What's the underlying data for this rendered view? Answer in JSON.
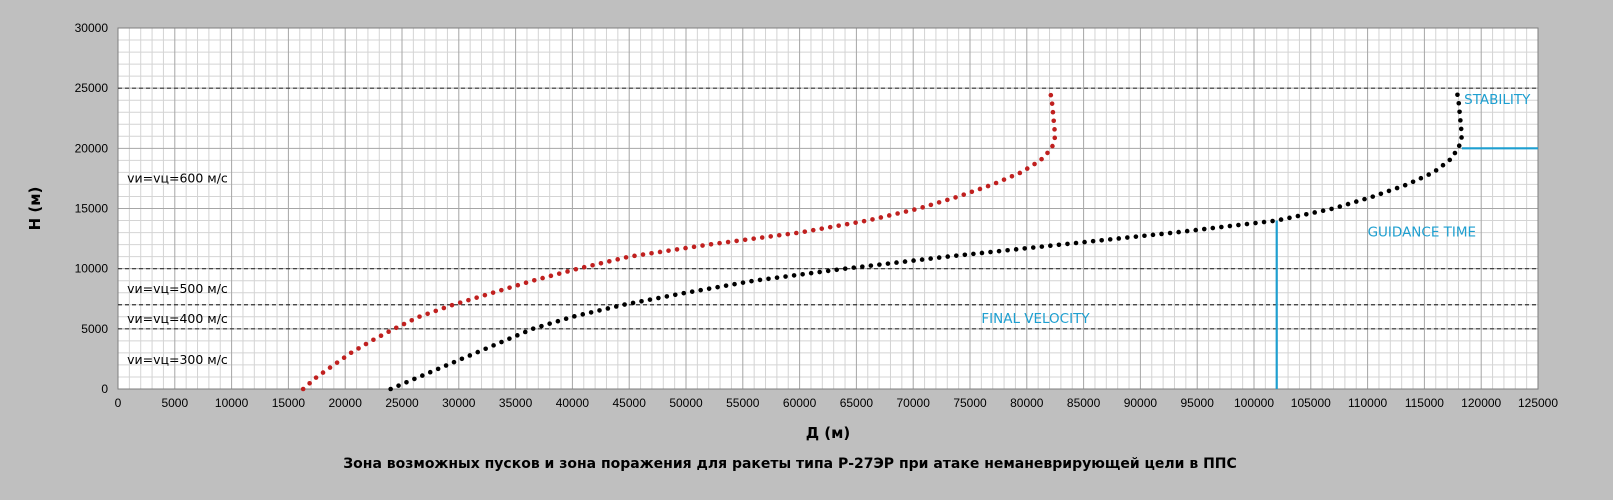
{
  "chart_data": {
    "type": "scatter",
    "title": "Зона возможных пусков и зона поражения для ракеты типа Р-27ЭР при атаке неманеврирующей цели в ППС",
    "xlabel": "Д (м)",
    "ylabel": "H (м)",
    "xlim": [
      0,
      125000
    ],
    "ylim": [
      0,
      30000
    ],
    "x_ticks": [
      0,
      5000,
      10000,
      15000,
      20000,
      25000,
      30000,
      35000,
      40000,
      45000,
      50000,
      55000,
      60000,
      65000,
      70000,
      75000,
      80000,
      85000,
      90000,
      95000,
      100000,
      105000,
      110000,
      115000,
      120000,
      125000
    ],
    "y_ticks": [
      0,
      5000,
      10000,
      15000,
      20000,
      25000,
      30000
    ],
    "minor_grid": {
      "x_step": 1000,
      "y_step": 1000
    },
    "major_grid_x_step": 5000,
    "grid": true,
    "legend": "none",
    "series": [
      {
        "color": "#c0201f",
        "points": [
          [
            16300,
            0
          ],
          [
            17500,
            1000
          ],
          [
            19000,
            2000
          ],
          [
            20500,
            3000
          ],
          [
            22300,
            4000
          ],
          [
            24300,
            5000
          ],
          [
            26500,
            6000
          ],
          [
            29500,
            7000
          ],
          [
            33000,
            8000
          ],
          [
            36500,
            9000
          ],
          [
            40500,
            10000
          ],
          [
            45000,
            11000
          ],
          [
            52000,
            12000
          ],
          [
            60000,
            13000
          ],
          [
            66000,
            14000
          ],
          [
            70500,
            15000
          ],
          [
            74000,
            16000
          ],
          [
            77000,
            17000
          ],
          [
            79500,
            18000
          ],
          [
            81200,
            19000
          ],
          [
            82200,
            20000
          ],
          [
            82500,
            21000
          ],
          [
            82400,
            22000
          ],
          [
            82300,
            23000
          ],
          [
            82200,
            24000
          ],
          [
            82000,
            25000
          ]
        ]
      },
      {
        "color": "#000000",
        "points": [
          [
            24000,
            0
          ],
          [
            26500,
            1000
          ],
          [
            29000,
            2000
          ],
          [
            31500,
            3000
          ],
          [
            34000,
            4000
          ],
          [
            36500,
            5000
          ],
          [
            40000,
            6000
          ],
          [
            44500,
            7000
          ],
          [
            50000,
            8000
          ],
          [
            56000,
            9000
          ],
          [
            64000,
            10000
          ],
          [
            73000,
            11000
          ],
          [
            83000,
            12000
          ],
          [
            93000,
            13000
          ],
          [
            102000,
            14000
          ],
          [
            107000,
            15000
          ],
          [
            110500,
            16000
          ],
          [
            113500,
            17000
          ],
          [
            115800,
            18000
          ],
          [
            117200,
            19000
          ],
          [
            118000,
            20000
          ],
          [
            118300,
            21000
          ],
          [
            118200,
            22000
          ],
          [
            118100,
            23000
          ],
          [
            118000,
            24000
          ],
          [
            117800,
            25000
          ]
        ]
      }
    ],
    "dashed_reference_lines_y": [
      25000,
      10000,
      7000,
      5000
    ],
    "zone_labels": [
      {
        "text": "vи=vц=600 м/с",
        "x": 800,
        "y": 17500
      },
      {
        "text": "vи=vц=500 м/с",
        "x": 800,
        "y": 8300
      },
      {
        "text": "vи=vц=400 м/с",
        "x": 800,
        "y": 5800
      },
      {
        "text": "vи=vц=300 м/с",
        "x": 800,
        "y": 2400
      }
    ],
    "annotations": [
      {
        "text": "STABILITY",
        "x": 118500,
        "y": 24000,
        "color": "#1e9fd0"
      },
      {
        "text": "GUIDANCE TIME",
        "x": 110000,
        "y": 13000,
        "color": "#1e9fd0"
      },
      {
        "text": "FINAL VELOCITY",
        "x": 76000,
        "y": 5800,
        "color": "#1e9fd0"
      }
    ],
    "annotation_lines": [
      {
        "x1": 102000,
        "y1": 0,
        "x2": 102000,
        "y2": 14000,
        "color": "#1e9fd0"
      },
      {
        "x1": 118300,
        "y1": 20000,
        "x2": 125000,
        "y2": 20000,
        "color": "#1e9fd0"
      }
    ]
  }
}
